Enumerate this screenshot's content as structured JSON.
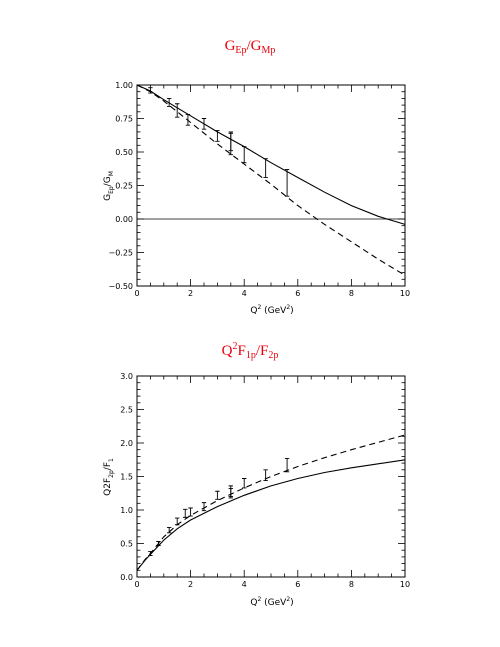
{
  "chart_data": [
    {
      "type": "line",
      "title": {
        "main": "G",
        "sub1": "Ep",
        "mid": "/G",
        "sub2": "Mp"
      },
      "xlabel": {
        "text": "Q",
        "sup": "2",
        "rest": " (GeV",
        "sup2": "2",
        "end": ")"
      },
      "ylabel": {
        "text": "G",
        "sub1": "Ep",
        "mid": "/G",
        "sub2": "M"
      },
      "xlim": [
        0,
        10
      ],
      "ylim": [
        -0.5,
        1.0
      ],
      "xticks": [
        0,
        2,
        4,
        6,
        8,
        10
      ],
      "xtick_labels": [
        "0",
        "2",
        "4",
        "6",
        "8",
        "10"
      ],
      "yticks": [
        -0.5,
        -0.25,
        0.0,
        0.25,
        0.5,
        0.75,
        1.0
      ],
      "ytick_labels": [
        "−0.50",
        "−0.25",
        "0.00",
        "0.25",
        "0.50",
        "0.75",
        "1.00"
      ],
      "zero_line": true,
      "series": [
        {
          "style": "solid",
          "x": [
            0,
            0.5,
            1,
            1.5,
            2,
            3,
            4,
            5,
            6,
            7,
            8,
            9,
            10
          ],
          "y": [
            1.0,
            0.955,
            0.89,
            0.83,
            0.77,
            0.65,
            0.54,
            0.42,
            0.31,
            0.2,
            0.1,
            0.02,
            -0.04
          ]
        },
        {
          "style": "dashed",
          "x": [
            0,
            0.5,
            1,
            2,
            3,
            4,
            5,
            6,
            7,
            8,
            9,
            10
          ],
          "y": [
            1.0,
            0.95,
            0.88,
            0.72,
            0.56,
            0.41,
            0.26,
            0.1,
            -0.04,
            -0.17,
            -0.3,
            -0.42
          ]
        },
        {
          "style": "errorbar",
          "x": [
            0.5,
            1.2,
            1.5,
            1.9,
            2.5,
            3.0,
            3.5,
            3.5,
            4.0,
            4.8,
            5.6
          ],
          "y": [
            0.96,
            0.87,
            0.81,
            0.74,
            0.71,
            0.62,
            0.58,
            0.56,
            0.48,
            0.38,
            0.27
          ],
          "err": [
            0.02,
            0.03,
            0.05,
            0.04,
            0.04,
            0.04,
            0.07,
            0.08,
            0.06,
            0.07,
            0.1
          ]
        }
      ]
    },
    {
      "type": "line",
      "title": {
        "main": "Q",
        "sup": "2",
        "mid1": "F",
        "sub1": "1p",
        "mid2": "/F",
        "sub2": "2p"
      },
      "xlabel": {
        "text": "Q",
        "sup": "2",
        "rest": " (GeV",
        "sup2": "2",
        "end": ")"
      },
      "ylabel": {
        "text": "Q2F",
        "sub1": "2p",
        "mid": "/F",
        "sub2": "1"
      },
      "xlim": [
        0,
        10
      ],
      "ylim": [
        0,
        3.0
      ],
      "xticks": [
        0,
        2,
        4,
        6,
        8,
        10
      ],
      "xtick_labels": [
        "0",
        "2",
        "4",
        "6",
        "8",
        "10"
      ],
      "yticks": [
        0,
        0.5,
        1.0,
        1.5,
        2.0,
        2.5,
        3.0
      ],
      "ytick_labels": [
        "0.0",
        "0.5",
        "1.0",
        "1.5",
        "2.0",
        "2.5",
        "3.0"
      ],
      "zero_line": false,
      "series": [
        {
          "style": "solid",
          "x": [
            0,
            0.3,
            0.6,
            1,
            1.5,
            2,
            3,
            4,
            5,
            6,
            7,
            8,
            9,
            10
          ],
          "y": [
            0.1,
            0.25,
            0.38,
            0.55,
            0.72,
            0.85,
            1.05,
            1.22,
            1.36,
            1.47,
            1.56,
            1.63,
            1.69,
            1.75
          ]
        },
        {
          "style": "dashed",
          "x": [
            0,
            0.3,
            0.6,
            1,
            1.5,
            2,
            3,
            4,
            5,
            6,
            7,
            8,
            9,
            10
          ],
          "y": [
            0.1,
            0.26,
            0.4,
            0.6,
            0.78,
            0.92,
            1.14,
            1.33,
            1.5,
            1.65,
            1.78,
            1.9,
            2.01,
            2.12
          ]
        },
        {
          "style": "errorbar",
          "x": [
            0.5,
            0.8,
            1.2,
            1.5,
            1.8,
            2.0,
            2.5,
            3.0,
            3.5,
            3.5,
            4.0,
            4.8,
            5.6
          ],
          "y": [
            0.35,
            0.5,
            0.7,
            0.83,
            0.95,
            0.97,
            1.05,
            1.22,
            1.25,
            1.28,
            1.4,
            1.52,
            1.67
          ],
          "err": [
            0.03,
            0.03,
            0.04,
            0.05,
            0.06,
            0.06,
            0.06,
            0.06,
            0.07,
            0.08,
            0.07,
            0.08,
            0.1
          ]
        }
      ]
    }
  ]
}
